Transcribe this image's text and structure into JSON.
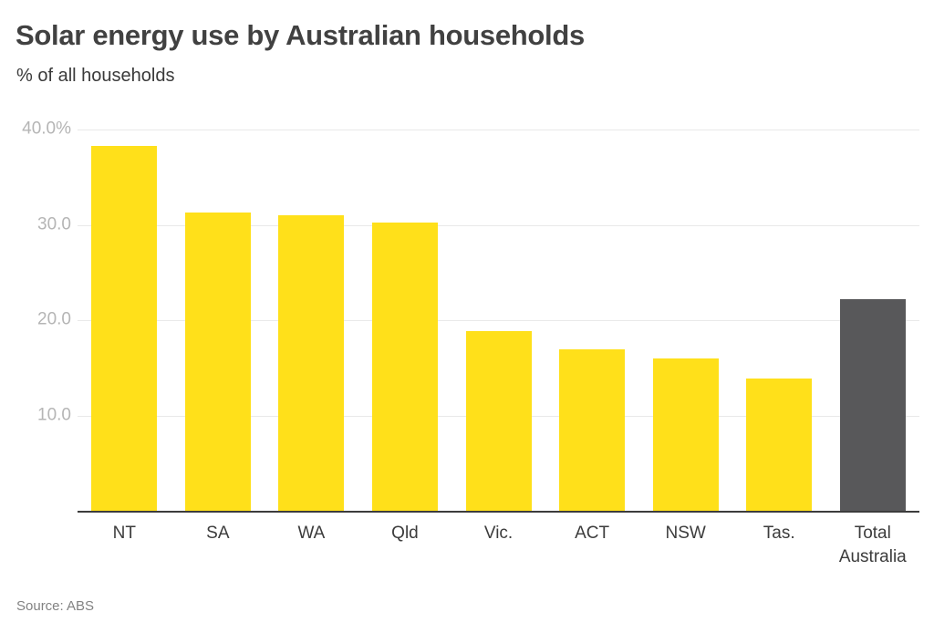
{
  "header": {
    "title": "Solar energy use by Australian households",
    "subtitle": "% of all households"
  },
  "footer": {
    "source": "Source: ABS"
  },
  "chart_data": {
    "type": "bar",
    "title": "Solar energy use by Australian households",
    "subtitle": "% of all households",
    "xlabel": "",
    "ylabel": "% of all households",
    "categories": [
      "NT",
      "SA",
      "WA",
      "Qld",
      "Vic.",
      "ACT",
      "NSW",
      "Tas.",
      "Total Australia"
    ],
    "values": [
      38.3,
      31.3,
      31.0,
      30.2,
      18.9,
      16.9,
      16.0,
      13.9,
      22.2
    ],
    "bar_colors": [
      "#FFE01A",
      "#FFE01A",
      "#FFE01A",
      "#FFE01A",
      "#FFE01A",
      "#FFE01A",
      "#FFE01A",
      "#FFE01A",
      "#58585A"
    ],
    "ylim": [
      0,
      40
    ],
    "yticks": [
      {
        "value": 40,
        "label": "40.0%"
      },
      {
        "value": 30,
        "label": "30.0"
      },
      {
        "value": 20,
        "label": "20.0"
      },
      {
        "value": 10,
        "label": "10.0"
      }
    ],
    "grid": true,
    "legend": false,
    "colors": {
      "state_bar": "#FFE01A",
      "total_bar": "#58585A",
      "gridline": "#e9e9e9",
      "baseline": "#3c3c3c",
      "y_tick_text": "#b5b5b5",
      "x_tick_text": "#3c3c3c",
      "title_text": "#414141",
      "source_text": "#828282"
    },
    "source": "Source: ABS"
  }
}
